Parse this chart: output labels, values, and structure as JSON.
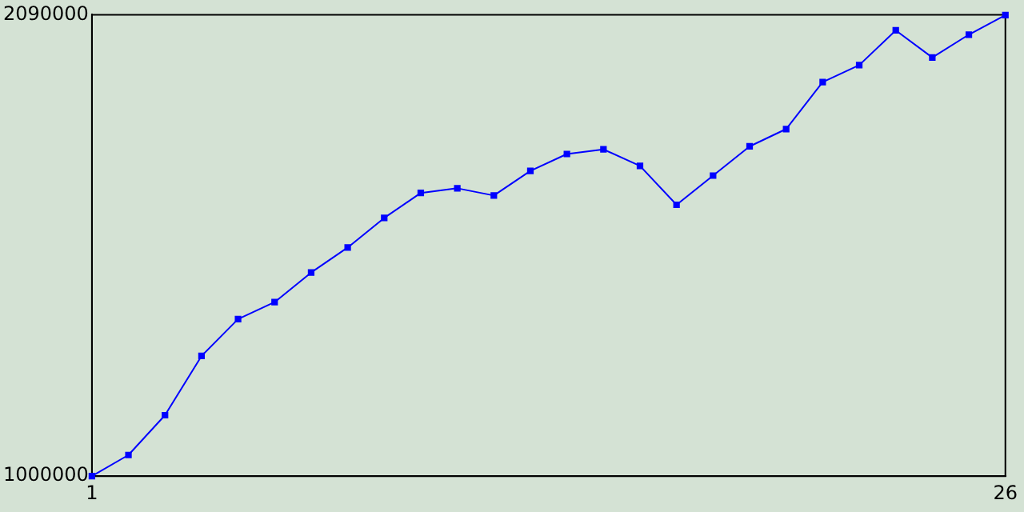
{
  "chart_data": {
    "type": "line",
    "x": [
      1,
      2,
      3,
      4,
      5,
      6,
      7,
      8,
      9,
      10,
      11,
      12,
      13,
      14,
      15,
      16,
      17,
      18,
      19,
      20,
      21,
      22,
      23,
      24,
      25,
      26
    ],
    "series": [
      {
        "color": "#0000ff",
        "values": [
          1000000,
          1050000,
          1144000,
          1284000,
          1371000,
          1411000,
          1481000,
          1540000,
          1610000,
          1669000,
          1680000,
          1663000,
          1721000,
          1761000,
          1772000,
          1733000,
          1641000,
          1710000,
          1779000,
          1820000,
          1931000,
          1971000,
          2053000,
          1989000,
          2043000,
          2089000
        ]
      }
    ],
    "xlim": [
      1,
      26
    ],
    "xticks": [
      1,
      26
    ],
    "ylim": [
      1000000,
      2090000
    ],
    "yticks": [
      1000000,
      2090000
    ],
    "grid": false,
    "legend": false,
    "marker": "square",
    "line_style": "solid"
  }
}
